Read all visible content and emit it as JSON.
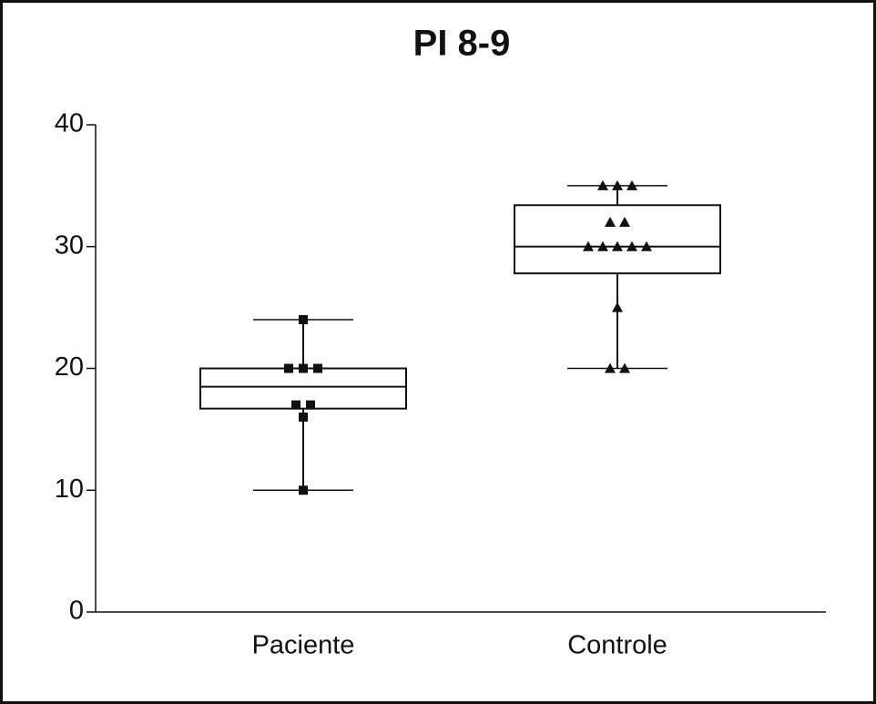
{
  "chart_data": {
    "type": "box",
    "title": "PI 8-9",
    "categories": [
      "Paciente",
      "Controle"
    ],
    "boxes": [
      {
        "whislo": 10,
        "q1": 16.7,
        "med": 18.5,
        "q3": 20,
        "whishi": 24
      },
      {
        "whislo": 20,
        "q1": 27.8,
        "med": 30,
        "q3": 33.4,
        "whishi": 35
      }
    ],
    "points": [
      [
        24,
        20,
        20,
        20,
        17,
        17,
        16,
        10
      ],
      [
        35,
        35,
        35,
        32,
        32,
        30,
        30,
        30,
        30,
        30,
        25,
        20,
        20
      ]
    ],
    "markers": [
      "square",
      "triangle"
    ],
    "color": "#111111",
    "ylim": [
      0,
      40
    ],
    "yticks": [
      0,
      10,
      20,
      30,
      40
    ]
  }
}
